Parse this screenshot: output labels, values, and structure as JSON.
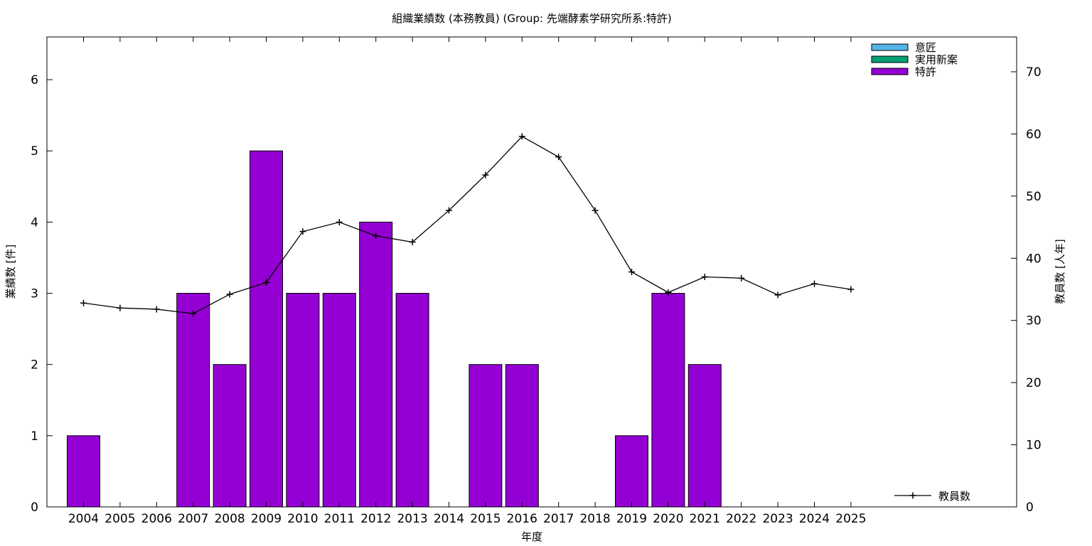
{
  "chart_data": {
    "type": "bar",
    "title": "組織業績数 (本務教員) (Group: 先端酵素学研究所系:特許)",
    "xlabel": "年度",
    "ylabel": "業績数 [件]",
    "y2label": "教員数 [人年]",
    "categories": [
      "2004",
      "2005",
      "2006",
      "2007",
      "2008",
      "2009",
      "2010",
      "2011",
      "2012",
      "2013",
      "2014",
      "2015",
      "2016",
      "2017",
      "2018",
      "2019",
      "2020",
      "2021",
      "2022",
      "2023",
      "2024",
      "2025"
    ],
    "ylim": [
      0,
      6.6
    ],
    "y2lim": [
      0,
      75.6
    ],
    "yticks": [
      0,
      1,
      2,
      3,
      4,
      5,
      6
    ],
    "y2ticks": [
      0,
      10,
      20,
      30,
      40,
      50,
      60,
      70
    ],
    "grid": false,
    "legend_position": "top-right",
    "series": [
      {
        "name": "意匠",
        "kind": "bar",
        "color": "#56b4e9",
        "values": [
          0,
          0,
          0,
          0,
          0,
          0,
          0,
          0,
          0,
          0,
          0,
          0,
          0,
          0,
          0,
          0,
          0,
          0,
          0,
          0,
          0,
          0
        ]
      },
      {
        "name": "実用新案",
        "kind": "bar",
        "color": "#009e73",
        "values": [
          0,
          0,
          0,
          0,
          0,
          0,
          0,
          0,
          0,
          0,
          0,
          0,
          0,
          0,
          0,
          0,
          0,
          0,
          0,
          0,
          0,
          0
        ]
      },
      {
        "name": "特許",
        "kind": "bar",
        "color": "#9400d3",
        "values": [
          1,
          0,
          0,
          3,
          2,
          5,
          3,
          3,
          4,
          3,
          0,
          2,
          2,
          0,
          0,
          1,
          3,
          2,
          0,
          0,
          0,
          0
        ]
      }
    ],
    "line_series": {
      "name": "教員数",
      "color": "#000000",
      "legend_position": "bottom-right",
      "values": [
        32.8,
        32.0,
        31.8,
        31.1,
        34.2,
        36.1,
        44.3,
        45.8,
        43.6,
        42.6,
        47.7,
        53.4,
        59.6,
        56.3,
        47.7,
        37.8,
        34.5,
        37.0,
        36.8,
        34.1,
        35.9,
        35.0
      ]
    }
  }
}
